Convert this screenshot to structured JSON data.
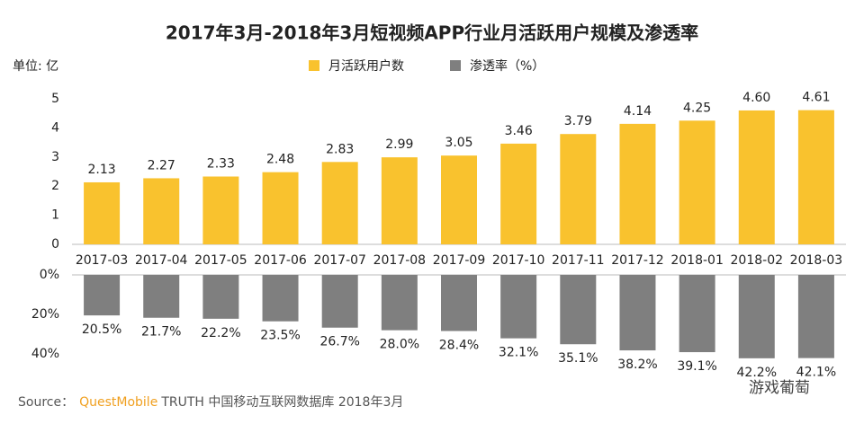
{
  "chart_data": [
    {
      "type": "bar",
      "title": "2017年3月-2018年3月短视频APP行业月活跃用户规模及渗透率",
      "y_label": "单位: 亿",
      "categories": [
        "2017-03",
        "2017-04",
        "2017-05",
        "2017-06",
        "2017-07",
        "2017-08",
        "2017-09",
        "2017-10",
        "2017-11",
        "2017-12",
        "2018-01",
        "2018-02",
        "2018-03"
      ],
      "series": [
        {
          "name": "月活跃用户数",
          "color": "#f9c22e",
          "values": [
            2.13,
            2.27,
            2.33,
            2.48,
            2.83,
            2.99,
            3.05,
            3.46,
            3.79,
            4.14,
            4.25,
            4.6,
            4.61
          ],
          "value_labels": [
            "2.13",
            "2.27",
            "2.33",
            "2.48",
            "2.83",
            "2.99",
            "3.05",
            "3.46",
            "3.79",
            "4.14",
            "4.25",
            "4.60",
            "4.61"
          ]
        }
      ],
      "ylim": [
        0,
        5
      ],
      "yticks": [
        0,
        1,
        2,
        3,
        4,
        5
      ]
    },
    {
      "type": "bar",
      "inverted": true,
      "series": [
        {
          "name": "渗透率（%）",
          "color": "#7f7f7f",
          "values": [
            20.5,
            21.7,
            22.2,
            23.5,
            26.7,
            28.0,
            28.4,
            32.1,
            35.1,
            38.2,
            39.1,
            42.2,
            42.1
          ],
          "value_labels": [
            "20.5%",
            "21.7%",
            "22.2%",
            "23.5%",
            "26.7%",
            "28.0%",
            "28.4%",
            "32.1%",
            "35.1%",
            "38.2%",
            "39.1%",
            "42.2%",
            "42.1%"
          ]
        }
      ],
      "ylim": [
        0,
        45
      ],
      "yticks": [
        {
          "value": 0,
          "label": "0%"
        },
        {
          "value": 20,
          "label": "20%"
        },
        {
          "value": 40,
          "label": "40%"
        }
      ]
    }
  ],
  "source": {
    "prefix": "Source：",
    "brand": "QuestMobile",
    "rest": "TRUTH 中国移动互联网数据库 2018年3月"
  },
  "watermark": "游戏葡萄"
}
